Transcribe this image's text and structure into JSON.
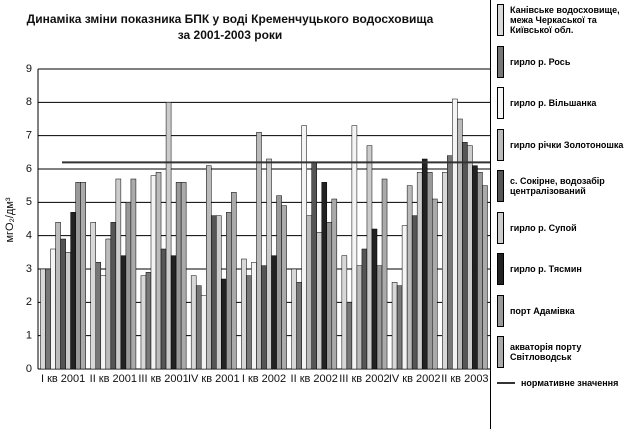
{
  "chart_data": {
    "type": "bar",
    "title": [
      "Динаміка зміни показника БПК у воді Кременчуцького водосховища",
      "за 2001-2003 роки"
    ],
    "y_label": "мгO₂/дм³",
    "categories": [
      "I кв 2001",
      "II кв 2001",
      "III кв 2001",
      "IV кв 2001",
      "I кв 2002",
      "II кв 2002",
      "III кв 2002",
      "IV кв 2002",
      "II кв 2003"
    ],
    "series": [
      {
        "name": "Канівське водосховище, межа Черкаської та Київської обл.",
        "color": "#d8d8d8",
        "values": [
          3.0,
          4.4,
          2.8,
          2.8,
          3.3,
          3.0,
          3.4,
          2.6,
          5.9
        ]
      },
      {
        "name": "гирло р. Рось",
        "color": "#777777",
        "values": [
          3.0,
          3.2,
          2.9,
          2.5,
          2.8,
          2.6,
          2.0,
          2.5,
          6.4
        ]
      },
      {
        "name": "гирло р. Вільшанка",
        "color": "#f4f4f4",
        "values": [
          3.6,
          2.8,
          5.8,
          2.2,
          3.2,
          7.3,
          7.3,
          4.3,
          8.1
        ]
      },
      {
        "name": "гирло річки Золотоношка",
        "color": "#bbbbbb",
        "values": [
          4.4,
          3.9,
          5.9,
          6.1,
          7.1,
          4.6,
          3.1,
          5.5,
          7.5
        ]
      },
      {
        "name": "с. Сокірне, водозабір централізований",
        "color": "#555555",
        "values": [
          3.9,
          4.4,
          3.6,
          4.6,
          3.1,
          6.2,
          3.6,
          4.6,
          6.8
        ]
      },
      {
        "name": "гирло р. Супой",
        "color": "#cccccc",
        "values": [
          3.5,
          5.7,
          8.0,
          4.6,
          6.3,
          4.1,
          6.7,
          5.9,
          6.7
        ]
      },
      {
        "name": "гирло р. Тясмин",
        "color": "#222222",
        "values": [
          4.7,
          3.4,
          3.4,
          2.7,
          3.4,
          5.6,
          4.2,
          6.3,
          6.1
        ]
      },
      {
        "name": "порт Адамівка",
        "color": "#999999",
        "values": [
          5.6,
          5.0,
          5.6,
          4.7,
          5.2,
          4.4,
          3.1,
          5.9,
          5.9
        ]
      },
      {
        "name": "акваторія порту Світловодськ",
        "color": "#aaaaaa",
        "values": [
          5.6,
          5.7,
          5.6,
          5.3,
          4.9,
          5.1,
          5.7,
          5.1,
          5.5
        ]
      }
    ],
    "norm": {
      "name": "нормативне значення",
      "value": 6.2,
      "color": "#333333"
    },
    "ylim": [
      0,
      9
    ],
    "yticks": [
      0,
      1,
      2,
      3,
      4,
      5,
      6,
      7,
      8,
      9
    ],
    "grid": true
  }
}
